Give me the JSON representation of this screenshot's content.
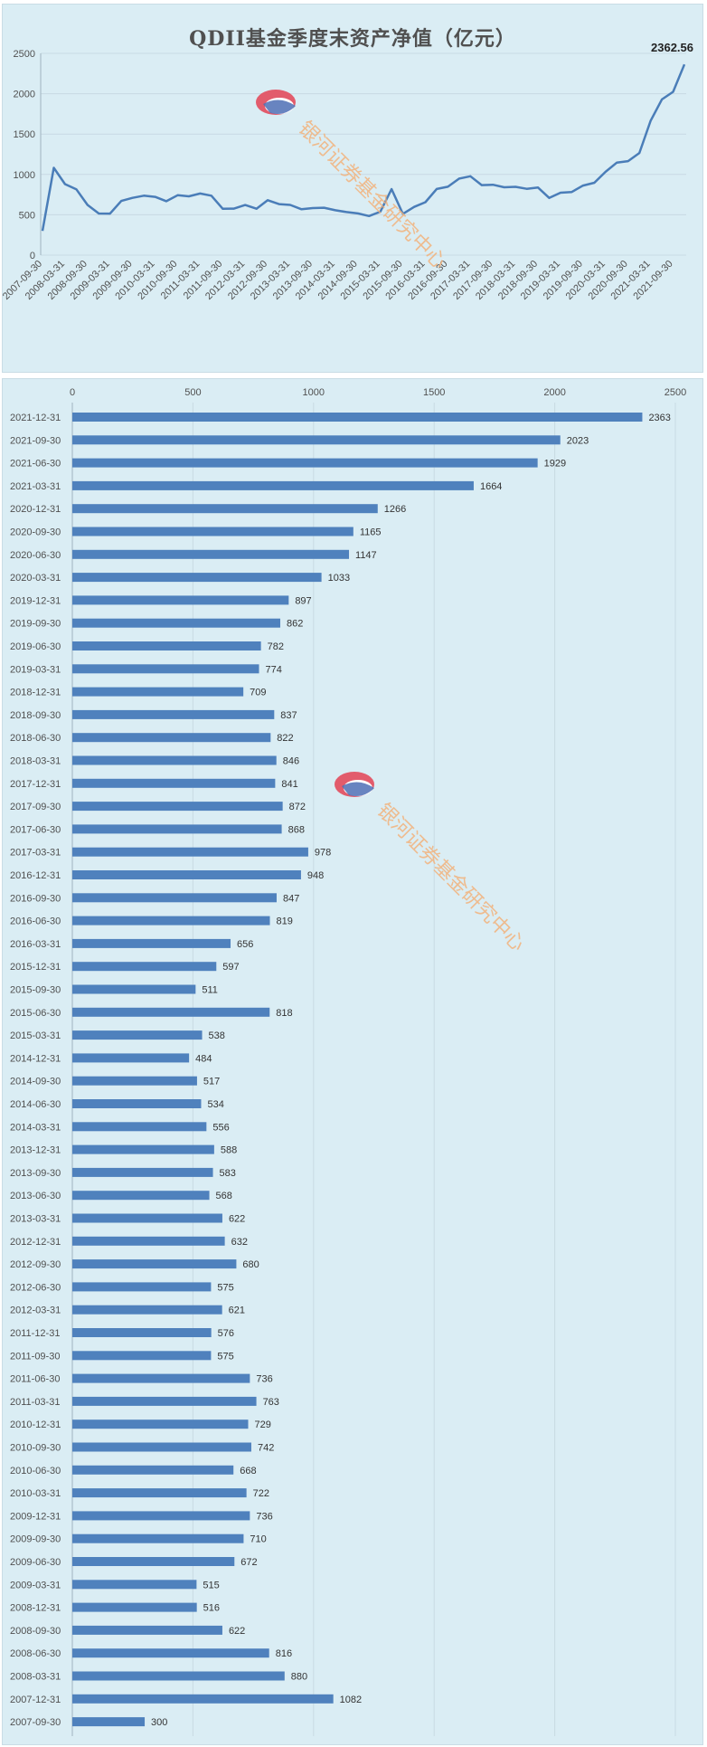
{
  "colors": {
    "bar": "#4f81bd",
    "line": "#4a7db8",
    "panel": "#daedf4",
    "grid": "#c8dae3"
  },
  "watermark": {
    "text": "银河证券基金研究中心",
    "logo": "galaxy-securities-logo-icon"
  },
  "chart_data": [
    {
      "type": "line",
      "title": "QDII基金季度末资产净值（亿元）",
      "xlabel": "",
      "ylabel": "",
      "ylim": [
        0,
        2500
      ],
      "yticks": [
        0,
        500,
        1000,
        1500,
        2000,
        2500
      ],
      "grid": true,
      "legend": "none",
      "x_tick_labels": [
        "2007-09-30",
        "2008-03-31",
        "2008-09-30",
        "2009-03-31",
        "2009-09-30",
        "2010-03-31",
        "2010-09-30",
        "2011-03-31",
        "2011-09-30",
        "2012-03-31",
        "2012-09-30",
        "2013-03-31",
        "2013-09-30",
        "2014-03-31",
        "2014-09-30",
        "2015-03-31",
        "2015-09-30",
        "2016-03-31",
        "2016-09-30",
        "2017-03-31",
        "2017-09-30",
        "2018-03-31",
        "2018-09-30",
        "2019-03-31",
        "2019-09-30",
        "2020-03-31",
        "2020-09-30",
        "2021-03-31",
        "2021-09-30"
      ],
      "x": [
        "2007-09-30",
        "2007-12-31",
        "2008-03-31",
        "2008-06-30",
        "2008-09-30",
        "2008-12-31",
        "2009-03-31",
        "2009-06-30",
        "2009-09-30",
        "2009-12-31",
        "2010-03-31",
        "2010-06-30",
        "2010-09-30",
        "2010-12-31",
        "2011-03-31",
        "2011-06-30",
        "2011-09-30",
        "2011-12-31",
        "2012-03-31",
        "2012-06-30",
        "2012-09-30",
        "2012-12-31",
        "2013-03-31",
        "2013-06-30",
        "2013-09-30",
        "2013-12-31",
        "2014-03-31",
        "2014-06-30",
        "2014-09-30",
        "2014-12-31",
        "2015-03-31",
        "2015-06-30",
        "2015-09-30",
        "2015-12-31",
        "2016-03-31",
        "2016-06-30",
        "2016-09-30",
        "2016-12-31",
        "2017-03-31",
        "2017-06-30",
        "2017-09-30",
        "2017-12-31",
        "2018-03-31",
        "2018-06-30",
        "2018-09-30",
        "2018-12-31",
        "2019-03-31",
        "2019-06-30",
        "2019-09-30",
        "2019-12-31",
        "2020-03-31",
        "2020-06-30",
        "2020-09-30",
        "2020-12-31",
        "2021-03-31",
        "2021-06-30",
        "2021-09-30",
        "2021-12-31"
      ],
      "values": [
        300,
        1082,
        880,
        816,
        622,
        516,
        515,
        672,
        710,
        736,
        722,
        668,
        742,
        729,
        763,
        736,
        575,
        576,
        621,
        575,
        680,
        632,
        622,
        568,
        583,
        588,
        556,
        534,
        517,
        484,
        538,
        818,
        511,
        597,
        656,
        819,
        847,
        948,
        978,
        868,
        872,
        841,
        846,
        822,
        837,
        709,
        774,
        782,
        862,
        897,
        1033,
        1147,
        1165,
        1266,
        1664,
        1929,
        2023,
        2363
      ],
      "end_label": "2362.56"
    },
    {
      "type": "bar",
      "orientation": "horizontal",
      "xlim": [
        0,
        2500
      ],
      "xticks": [
        0,
        500,
        1000,
        1500,
        2000,
        2500
      ],
      "grid": true,
      "legend": "none",
      "categories": [
        "2021-12-31",
        "2021-09-30",
        "2021-06-30",
        "2021-03-31",
        "2020-12-31",
        "2020-09-30",
        "2020-06-30",
        "2020-03-31",
        "2019-12-31",
        "2019-09-30",
        "2019-06-30",
        "2019-03-31",
        "2018-12-31",
        "2018-09-30",
        "2018-06-30",
        "2018-03-31",
        "2017-12-31",
        "2017-09-30",
        "2017-06-30",
        "2017-03-31",
        "2016-12-31",
        "2016-09-30",
        "2016-06-30",
        "2016-03-31",
        "2015-12-31",
        "2015-09-30",
        "2015-06-30",
        "2015-03-31",
        "2014-12-31",
        "2014-09-30",
        "2014-06-30",
        "2014-03-31",
        "2013-12-31",
        "2013-09-30",
        "2013-06-30",
        "2013-03-31",
        "2012-12-31",
        "2012-09-30",
        "2012-06-30",
        "2012-03-31",
        "2011-12-31",
        "2011-09-30",
        "2011-06-30",
        "2011-03-31",
        "2010-12-31",
        "2010-09-30",
        "2010-06-30",
        "2010-03-31",
        "2009-12-31",
        "2009-09-30",
        "2009-06-30",
        "2009-03-31",
        "2008-12-31",
        "2008-09-30",
        "2008-06-30",
        "2008-03-31",
        "2007-12-31",
        "2007-09-30"
      ],
      "values": [
        2363,
        2023,
        1929,
        1664,
        1266,
        1165,
        1147,
        1033,
        897,
        862,
        782,
        774,
        709,
        837,
        822,
        846,
        841,
        872,
        868,
        978,
        948,
        847,
        819,
        656,
        597,
        511,
        818,
        538,
        484,
        517,
        534,
        556,
        588,
        583,
        568,
        622,
        632,
        680,
        575,
        621,
        576,
        575,
        736,
        763,
        729,
        742,
        668,
        722,
        736,
        710,
        672,
        515,
        516,
        622,
        816,
        880,
        1082,
        300
      ]
    }
  ]
}
